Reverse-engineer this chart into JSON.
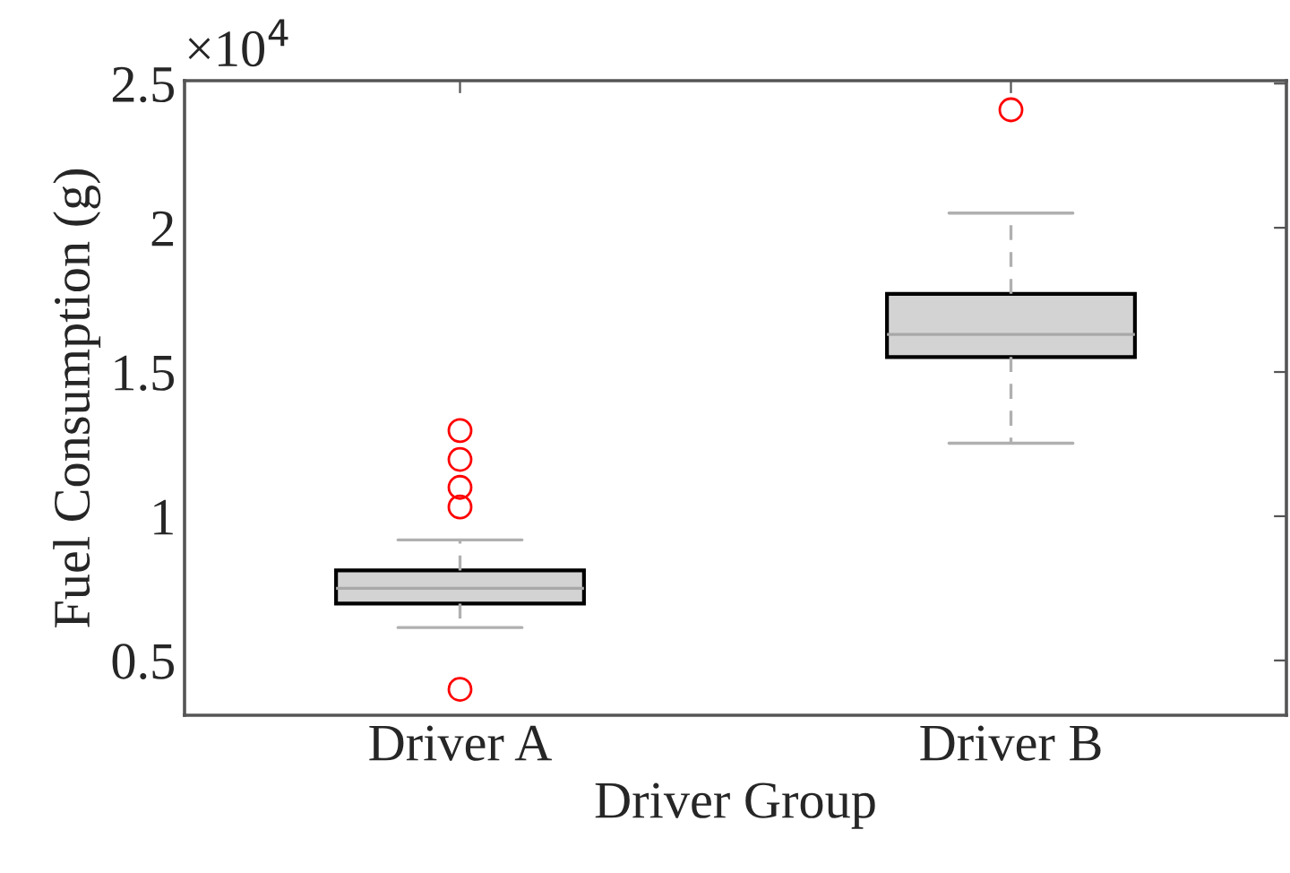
{
  "chart_data": {
    "type": "box",
    "xlabel": "Driver Group",
    "ylabel": "Fuel Consumption (g)",
    "categories": [
      "Driver A",
      "Driver B"
    ],
    "series": [
      {
        "color": "#d3d3d3",
        "boxes": [
          {
            "low": 0.614,
            "q1": 0.697,
            "median": 0.75,
            "q3": 0.812,
            "high": 0.918,
            "outliers": [
              1.297,
              1.197,
              1.1,
              1.032,
              0.4
            ]
          },
          {
            "low": 1.253,
            "q1": 1.552,
            "median": 1.63,
            "q3": 1.771,
            "high": 2.051,
            "outliers": [
              2.409
            ]
          }
        ]
      }
    ],
    "ylim": [
      0.31,
      2.51
    ],
    "yticks": [
      0.5,
      1,
      1.5,
      2,
      2.5
    ],
    "annotations": [
      "×10$^{4}$"
    ],
    "grid": false
  }
}
